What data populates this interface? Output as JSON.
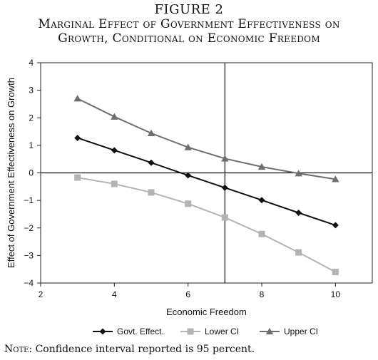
{
  "figure_label": "FIGURE 2",
  "title_line1": "Marginal Effect of Government Effectiveness on",
  "title_line2": "Growth, Conditional on Economic Freedom",
  "note_lead": "Note:",
  "note_text": "Confidence interval reported is 95 percent.",
  "chart_data": {
    "type": "line",
    "xlabel": "Economic Freedom",
    "ylabel": "Effect of Government Effectiveness on Growth",
    "xlim": [
      2,
      11
    ],
    "ylim": [
      -4,
      4
    ],
    "xticks": [
      2,
      4,
      6,
      8,
      10
    ],
    "yticks": [
      4,
      3,
      2,
      1,
      0,
      -1,
      -2,
      -3,
      -4
    ],
    "reference_lines": {
      "y": 0,
      "x": 7
    },
    "grid": false,
    "legend_position": "bottom",
    "series": [
      {
        "name": "Govt. Effect.",
        "marker": "diamond",
        "color": "#111111",
        "x": [
          3,
          4,
          5,
          6,
          7,
          8,
          9,
          10
        ],
        "y": [
          1.27,
          0.82,
          0.37,
          -0.09,
          -0.54,
          -0.99,
          -1.45,
          -1.9
        ]
      },
      {
        "name": "Lower CI",
        "marker": "square",
        "color": "#b3b3b3",
        "x": [
          3,
          4,
          5,
          6,
          7,
          8,
          9,
          10
        ],
        "y": [
          -0.17,
          -0.4,
          -0.71,
          -1.12,
          -1.62,
          -2.22,
          -2.89,
          -3.6
        ]
      },
      {
        "name": "Upper CI",
        "marker": "triangle",
        "color": "#6e6e6e",
        "x": [
          3,
          4,
          5,
          6,
          7,
          8,
          9,
          10
        ],
        "y": [
          2.7,
          2.04,
          1.44,
          0.93,
          0.52,
          0.22,
          -0.02,
          -0.23
        ]
      }
    ]
  }
}
